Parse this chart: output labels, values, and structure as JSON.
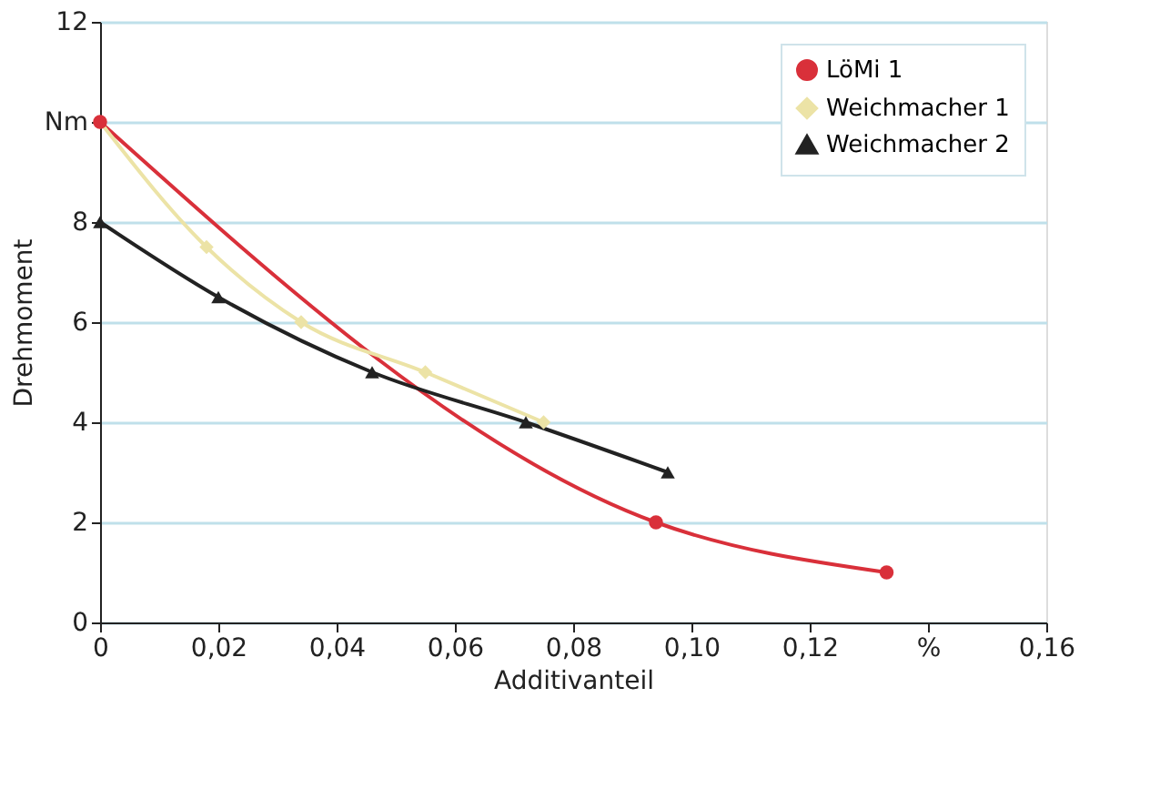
{
  "chart_data": {
    "type": "line",
    "xlabel": "Additivanteil",
    "ylabel": "Drehmoment",
    "xlim": [
      0,
      0.16
    ],
    "xticks": [
      0,
      {
        "value": 0.02,
        "label": "0,02"
      },
      {
        "value": 0.04,
        "label": "0,04"
      },
      {
        "value": 0.06,
        "label": "0,06"
      },
      {
        "value": 0.08,
        "label": "0,08"
      },
      {
        "value": 0.1,
        "label": "0,10"
      },
      {
        "value": 0.12,
        "label": "0,12"
      },
      {
        "value": 0.14,
        "label": "%"
      },
      {
        "value": 0.16,
        "label": "0,16"
      }
    ],
    "ylim": [
      0,
      12
    ],
    "yticks": [
      0,
      2,
      4,
      6,
      8,
      {
        "value": 10,
        "label": "Nm"
      },
      12
    ],
    "grid": "y",
    "legend": "top right",
    "line_style": "solid",
    "series": [
      {
        "name": "LöMi 1",
        "color": "#d9303a",
        "marker": "circle",
        "x": [
          0,
          0.094,
          0.133
        ],
        "values": [
          10,
          2,
          1
        ]
      },
      {
        "name": "Weichmacher 1",
        "color": "#ece3a6",
        "marker": "diamond",
        "x": [
          0,
          0.018,
          0.034,
          0.055,
          0.075
        ],
        "values": [
          10,
          7.5,
          6,
          5,
          4
        ]
      },
      {
        "name": "Weichmacher 2",
        "color": "#222222",
        "marker": "triangle",
        "x": [
          0,
          0.02,
          0.046,
          0.072,
          0.096
        ],
        "values": [
          8,
          6.5,
          5,
          4,
          3
        ]
      }
    ]
  }
}
